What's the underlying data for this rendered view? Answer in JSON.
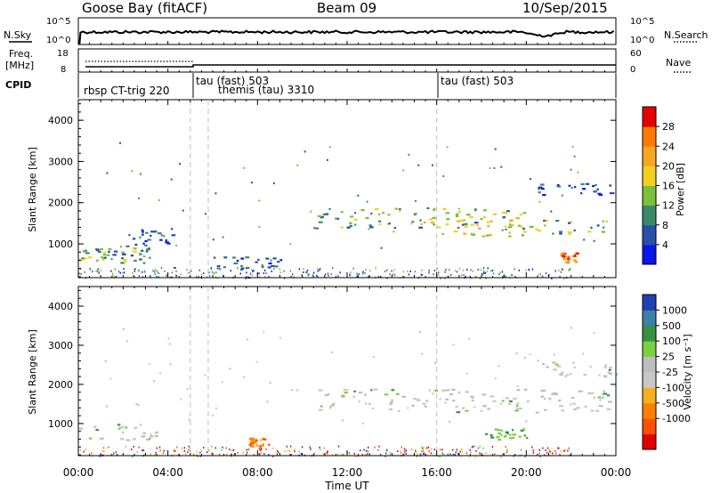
{
  "header": {
    "station": "Goose Bay (fitACF)",
    "beam": "Beam 09",
    "date": "10/Sep/2015"
  },
  "top_panel": {
    "left_label": "N.Sky",
    "right_label": "N.Search",
    "left_ticks": [
      "10^5",
      "10^0"
    ],
    "right_ticks": [
      "10^5",
      "10^0"
    ]
  },
  "freq_panel": {
    "left_label_top": "Freq.",
    "left_label_bottom": "[MHz]",
    "right_label": "Nave",
    "left_ticks": [
      "18",
      "8"
    ],
    "right_ticks": [
      "60",
      "0"
    ]
  },
  "cpid_panel": {
    "label": "CPID",
    "modes": [
      {
        "text": "rbsp CT-trig 220",
        "start_hour": 0.0
      },
      {
        "text": "tau (fast) 503",
        "start_hour": 5.0
      },
      {
        "text": "themis (tau) 3310",
        "start_hour": 5.8
      },
      {
        "text": "tau (fast) 503",
        "start_hour": 16.0
      }
    ]
  },
  "colors": {
    "power_scale": [
      "#0a17e6",
      "#2850a8",
      "#3a8a6a",
      "#7ac03a",
      "#f2d020",
      "#f5a623",
      "#ff7a00",
      "#e60000"
    ],
    "velocity_scale": [
      "#2040b0",
      "#3a80a8",
      "#3a9040",
      "#7ad040",
      "#bebebe",
      "#c8c8c8",
      "#f5b020",
      "#ff8000",
      "#ff5000",
      "#e00000"
    ],
    "ground_scatter": "#a0a0a0"
  },
  "chart_data": [
    {
      "type": "heatmap",
      "title": "Power",
      "xlabel": "",
      "ylabel": "Slant Range [km]",
      "x_ticks": [
        "00:00",
        "04:00",
        "08:00",
        "12:00",
        "16:00",
        "20:00",
        "00:00"
      ],
      "xlim_hours": [
        0,
        24
      ],
      "ylim": [
        180,
        4500
      ],
      "y_ticks": [
        1000,
        2000,
        3000,
        4000
      ],
      "colorbar": {
        "label": "Power [dB]",
        "ticks": [
          "4",
          "8",
          "12",
          "16",
          "20",
          "24",
          "28"
        ]
      },
      "regions": [
        {
          "t0": 0.0,
          "t1": 1.6,
          "r0": 600,
          "r1": 900,
          "level": "mid"
        },
        {
          "t0": 1.8,
          "t1": 3.2,
          "r0": 550,
          "r1": 1000,
          "level": "mid"
        },
        {
          "t0": 2.2,
          "t1": 4.2,
          "r0": 1000,
          "r1": 1400,
          "level": "low"
        },
        {
          "t0": 6.0,
          "t1": 9.0,
          "r0": 400,
          "r1": 700,
          "level": "low"
        },
        {
          "t0": 10.5,
          "t1": 19.5,
          "r0": 1400,
          "r1": 1900,
          "level": "mid"
        },
        {
          "t0": 15.0,
          "t1": 20.0,
          "r0": 1200,
          "r1": 1800,
          "level": "high"
        },
        {
          "t0": 19.5,
          "t1": 24.0,
          "r0": 1200,
          "r1": 1600,
          "level": "mid"
        },
        {
          "t0": 20.5,
          "t1": 24.0,
          "r0": 2200,
          "r1": 2500,
          "level": "low"
        },
        {
          "t0": 21.5,
          "t1": 22.2,
          "r0": 550,
          "r1": 800,
          "level": "peak"
        }
      ]
    },
    {
      "type": "heatmap",
      "title": "Velocity",
      "xlabel": "Time UT",
      "ylabel": "Slant Range [km]",
      "x_ticks": [
        "00:00",
        "04:00",
        "08:00",
        "12:00",
        "16:00",
        "20:00",
        "00:00"
      ],
      "xlim_hours": [
        0,
        24
      ],
      "ylim": [
        180,
        4500
      ],
      "y_ticks": [
        1000,
        2000,
        3000,
        4000
      ],
      "colorbar": {
        "label": "Velocity [m s⁻¹]",
        "ticks": [
          "1000",
          "500",
          "100",
          "25",
          "-25",
          "-100",
          "-500",
          "-1000"
        ]
      },
      "regions": [
        {
          "t0": 0.0,
          "t1": 3.5,
          "r0": 600,
          "r1": 1000,
          "level": "gs"
        },
        {
          "t0": 10.5,
          "t1": 24.0,
          "r0": 1300,
          "r1": 1900,
          "level": "gs"
        },
        {
          "t0": 20.5,
          "t1": 24.0,
          "r0": 2200,
          "r1": 2600,
          "level": "gs"
        },
        {
          "t0": 7.5,
          "t1": 8.5,
          "r0": 400,
          "r1": 650,
          "level": "neg"
        },
        {
          "t0": 18.0,
          "t1": 20.0,
          "r0": 600,
          "r1": 900,
          "level": "pos"
        }
      ]
    }
  ]
}
